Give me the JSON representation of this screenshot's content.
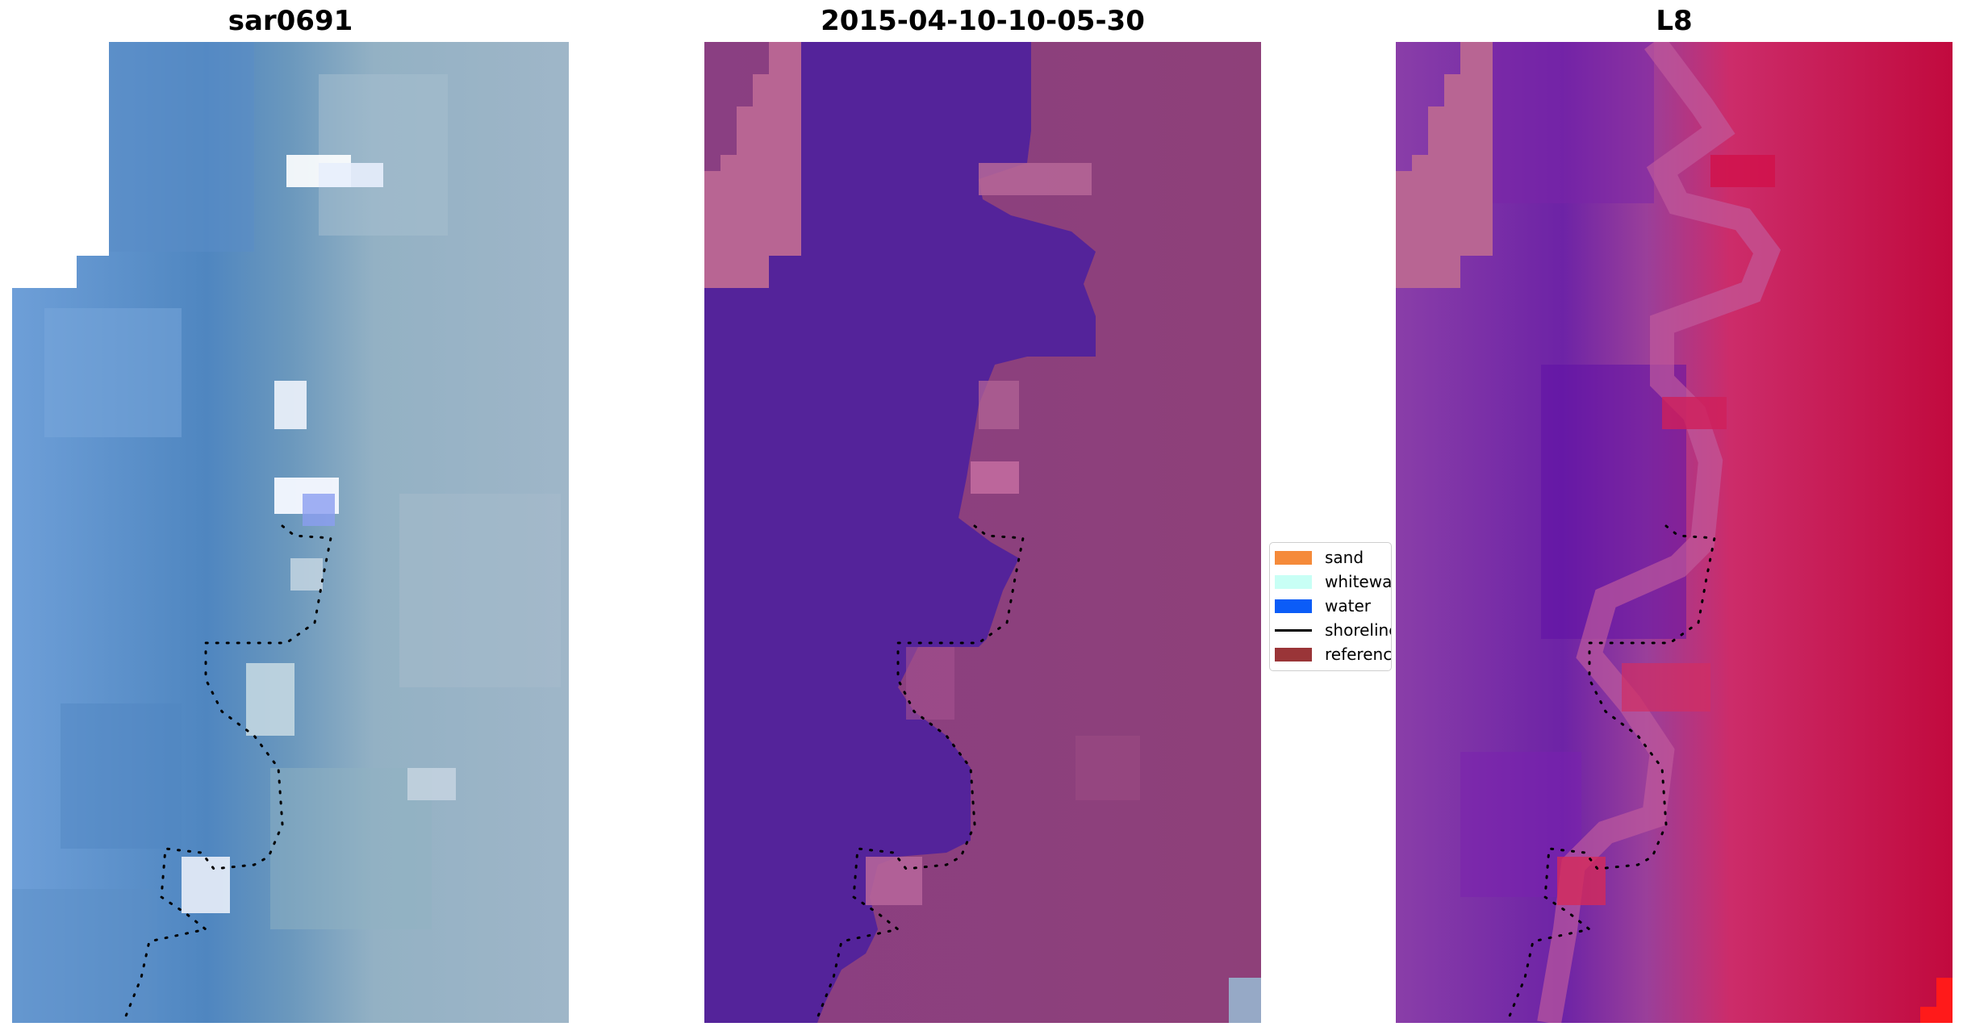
{
  "panels": [
    {
      "title": "sar0691"
    },
    {
      "title": "2015-04-10-10-05-30"
    },
    {
      "title": "L8"
    }
  ],
  "legend": {
    "items": [
      {
        "label": "sand",
        "color": "#f58a3a"
      },
      {
        "label": "whitewater",
        "color": "#c8fff5"
      },
      {
        "label": "water",
        "color": "#0b5cf7"
      },
      {
        "label": "shoreline",
        "color": "#000000"
      },
      {
        "label": "reference",
        "color": "#9a3538"
      }
    ]
  }
}
